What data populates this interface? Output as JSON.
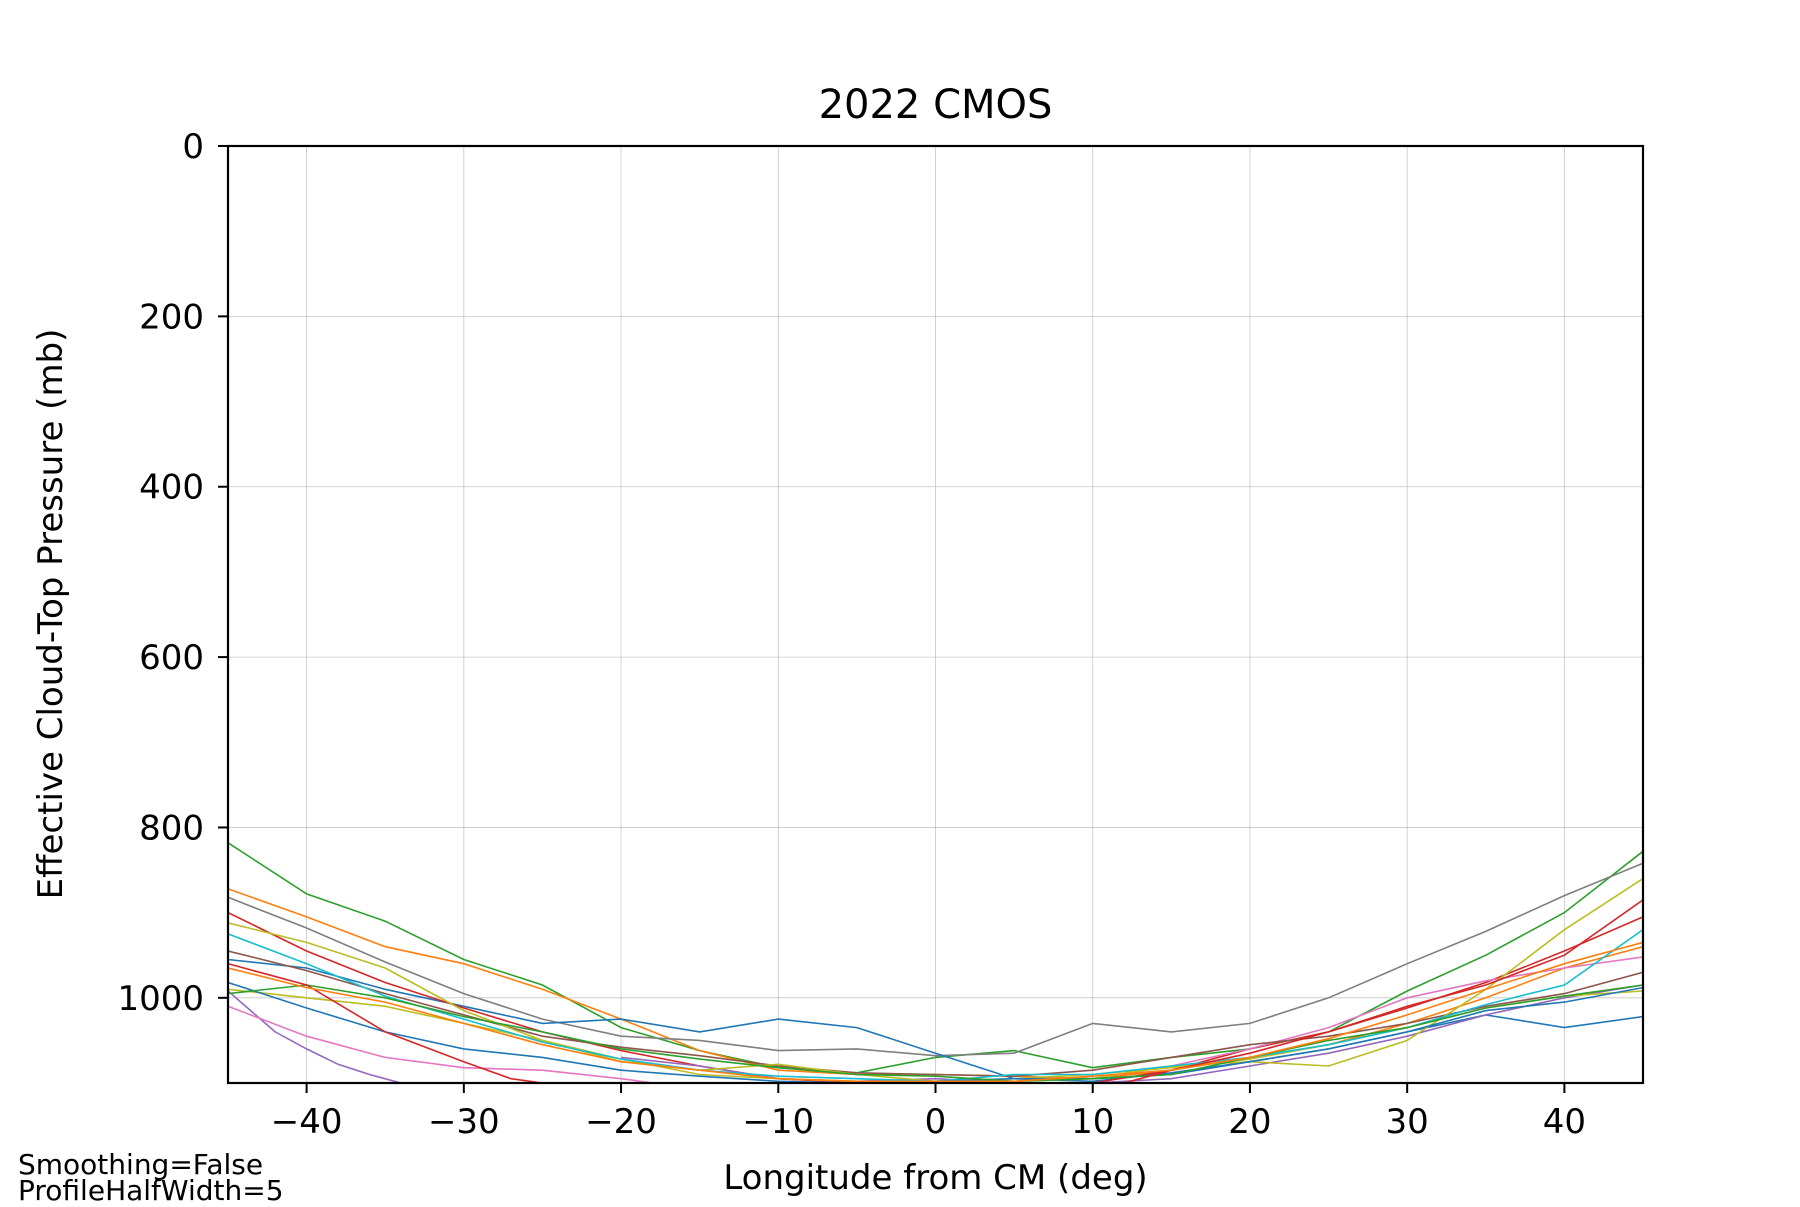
{
  "chart_data": {
    "type": "line",
    "title": "2022 CMOS",
    "xlabel": "Longitude from CM (deg)",
    "ylabel": "Effective Cloud-Top Pressure (mb)",
    "xlim": [
      -45,
      45
    ],
    "ylim": [
      1100,
      0
    ],
    "y_inverted": true,
    "grid": true,
    "x_ticks": [
      -40,
      -30,
      -20,
      -10,
      0,
      10,
      20,
      30,
      40
    ],
    "x_tick_labels": [
      "−40",
      "−30",
      "−20",
      "−10",
      "0",
      "10",
      "20",
      "30",
      "40"
    ],
    "y_ticks": [
      0,
      200,
      400,
      600,
      800,
      1000
    ],
    "y_tick_labels": [
      "0",
      "200",
      "400",
      "600",
      "800",
      "1000"
    ],
    "series": [
      {
        "color": "#2ca02c",
        "x": [
          -45,
          -40,
          -35,
          -30,
          -25,
          -20,
          -15,
          -10,
          -5,
          0,
          5,
          10,
          15,
          20,
          25,
          30,
          35,
          40,
          45
        ],
        "y": [
          818,
          878,
          910,
          955,
          985,
          1035,
          1062,
          1082,
          1088,
          1070,
          1062,
          1082,
          1070,
          1060,
          1040,
          992,
          950,
          900,
          828
        ]
      },
      {
        "color": "#ff7f0e",
        "x": [
          -45,
          -40,
          -35,
          -30,
          -25,
          -20,
          -15,
          -10,
          -5,
          0,
          5,
          10,
          15,
          20,
          25,
          30,
          35,
          40,
          45
        ],
        "y": [
          872,
          905,
          940,
          960,
          990,
          1025,
          1062,
          1085,
          1090,
          1090,
          1092,
          1095,
          1085,
          1070,
          1055,
          1030,
          1000,
          965,
          940
        ]
      },
      {
        "color": "#7f7f7f",
        "x": [
          -45,
          -40,
          -35,
          -30,
          -25,
          -20,
          -15,
          -10,
          -5,
          0,
          5,
          10,
          15,
          20,
          25,
          30,
          35,
          40,
          45
        ],
        "y": [
          882,
          918,
          958,
          995,
          1025,
          1045,
          1050,
          1062,
          1060,
          1068,
          1065,
          1030,
          1040,
          1030,
          1000,
          960,
          922,
          880,
          842
        ]
      },
      {
        "color": "#1f77b4",
        "x": [
          -45,
          -40,
          -35,
          -30,
          -25,
          -20,
          -15,
          -10,
          -5,
          0,
          5,
          10,
          15,
          20,
          25,
          30,
          35,
          40,
          45
        ],
        "y": [
          955,
          965,
          990,
          1010,
          1030,
          1025,
          1040,
          1025,
          1035,
          1065,
          1095,
          1098,
          1088,
          1075,
          1060,
          1040,
          1020,
          1035,
          1022
        ]
      },
      {
        "color": "#d62728",
        "x": [
          -45,
          -40,
          -35,
          -30,
          -25,
          -20,
          -15,
          -10,
          -5,
          0,
          5,
          10,
          15,
          20,
          25,
          30,
          35,
          40,
          45
        ],
        "y": [
          900,
          945,
          982,
          1012,
          1040,
          1062,
          1080,
          1095,
          1100,
          1100,
          1100,
          1100,
          1085,
          1060,
          1040,
          1012,
          982,
          945,
          905
        ]
      },
      {
        "color": "#9467bd",
        "x": [
          -45,
          -42,
          -40,
          -38,
          -36,
          -34
        ],
        "y": [
          992,
          1040,
          1060,
          1078,
          1090,
          1100
        ]
      },
      {
        "color": "#9467bd",
        "x": [
          -20,
          -15,
          -10,
          -5,
          0,
          5,
          10,
          15,
          20,
          25,
          30,
          35,
          40,
          45
        ],
        "y": [
          1070,
          1080,
          1095,
          1098,
          1095,
          1100,
          1100,
          1095,
          1080,
          1065,
          1045,
          1020,
          1000,
          985
        ]
      },
      {
        "color": "#e377c2",
        "x": [
          -45,
          -40,
          -35,
          -30,
          -25,
          -20,
          -18
        ],
        "y": [
          1010,
          1045,
          1070,
          1082,
          1085,
          1095,
          1100
        ]
      },
      {
        "color": "#e377c2",
        "x": [
          10,
          15,
          20,
          25,
          30,
          35,
          40,
          45
        ],
        "y": [
          1095,
          1080,
          1060,
          1035,
          1000,
          980,
          965,
          952
        ]
      },
      {
        "color": "#8c564b",
        "x": [
          -45,
          -40,
          -35,
          -30,
          -25,
          -20,
          -15,
          -10,
          -5,
          0,
          5,
          10,
          15,
          20,
          25,
          30,
          35,
          40,
          45
        ],
        "y": [
          945,
          968,
          995,
          1020,
          1045,
          1058,
          1068,
          1080,
          1088,
          1090,
          1092,
          1085,
          1070,
          1055,
          1045,
          1030,
          1010,
          995,
          970
        ]
      },
      {
        "color": "#bcbd22",
        "x": [
          -45,
          -40,
          -35,
          -30,
          -25,
          -20,
          -15,
          -10,
          -5,
          0,
          5,
          10,
          15,
          20,
          25,
          30,
          35,
          40,
          45
        ],
        "y": [
          912,
          935,
          965,
          1015,
          1050,
          1075,
          1085,
          1078,
          1090,
          1098,
          1098,
          1095,
          1080,
          1075,
          1080,
          1050,
          990,
          920,
          860
        ]
      },
      {
        "color": "#bcbd22",
        "x": [
          -45,
          -40,
          -35,
          -30,
          -25,
          -20,
          -15,
          -10,
          -5,
          0,
          5,
          10,
          15,
          20,
          25,
          30,
          35,
          40,
          45
        ],
        "y": [
          990,
          1000,
          1010,
          1030,
          1050,
          1072,
          1090,
          1095,
          1098,
          1098,
          1095,
          1090,
          1082,
          1072,
          1055,
          1035,
          1012,
          998,
          992
        ]
      },
      {
        "color": "#17becf",
        "x": [
          -45,
          -40,
          -35,
          -30,
          -25,
          -20,
          -15,
          -10,
          -5,
          0,
          5,
          10,
          15,
          20,
          25,
          30,
          35,
          40,
          45
        ],
        "y": [
          925,
          960,
          998,
          1025,
          1052,
          1072,
          1085,
          1092,
          1095,
          1098,
          1090,
          1090,
          1080,
          1070,
          1055,
          1035,
          1008,
          985,
          920
        ]
      },
      {
        "color": "#1f77b4",
        "x": [
          -45,
          -40,
          -35,
          -30,
          -25,
          -20,
          -15,
          -10,
          -5,
          0,
          5,
          10,
          15,
          20,
          25,
          30,
          35,
          40,
          45
        ],
        "y": [
          982,
          1012,
          1040,
          1060,
          1070,
          1085,
          1092,
          1098,
          1100,
          1098,
          1095,
          1095,
          1090,
          1075,
          1060,
          1040,
          1015,
          1005,
          988
        ]
      },
      {
        "color": "#2ca02c",
        "x": [
          -45,
          -40,
          -35,
          -30,
          -25,
          -20,
          -15,
          -10,
          -5,
          0,
          5,
          10,
          15,
          20,
          25,
          30,
          35,
          40,
          45
        ],
        "y": [
          995,
          985,
          1000,
          1022,
          1040,
          1060,
          1072,
          1082,
          1090,
          1092,
          1098,
          1095,
          1090,
          1070,
          1050,
          1035,
          1012,
          998,
          985
        ]
      },
      {
        "color": "#d62728",
        "x": [
          -45,
          -40,
          -35,
          -30,
          -27,
          -25
        ],
        "y": [
          960,
          985,
          1040,
          1075,
          1095,
          1100
        ]
      },
      {
        "color": "#d62728",
        "x": [
          12,
          15,
          20,
          25,
          30,
          35,
          40,
          45
        ],
        "y": [
          1100,
          1085,
          1065,
          1040,
          1010,
          985,
          950,
          885
        ]
      },
      {
        "color": "#ff7f0e",
        "x": [
          -45,
          -40,
          -35,
          -30,
          -25,
          -20,
          -15,
          -10,
          -5,
          0,
          5,
          10,
          15,
          20,
          25,
          30,
          35,
          40,
          45
        ],
        "y": [
          965,
          988,
          1005,
          1030,
          1055,
          1075,
          1085,
          1095,
          1098,
          1098,
          1098,
          1092,
          1085,
          1070,
          1048,
          1020,
          990,
          960,
          935
        ]
      }
    ]
  },
  "footnotes": [
    "Smoothing=False",
    "ProfileHalfWidth=5"
  ]
}
